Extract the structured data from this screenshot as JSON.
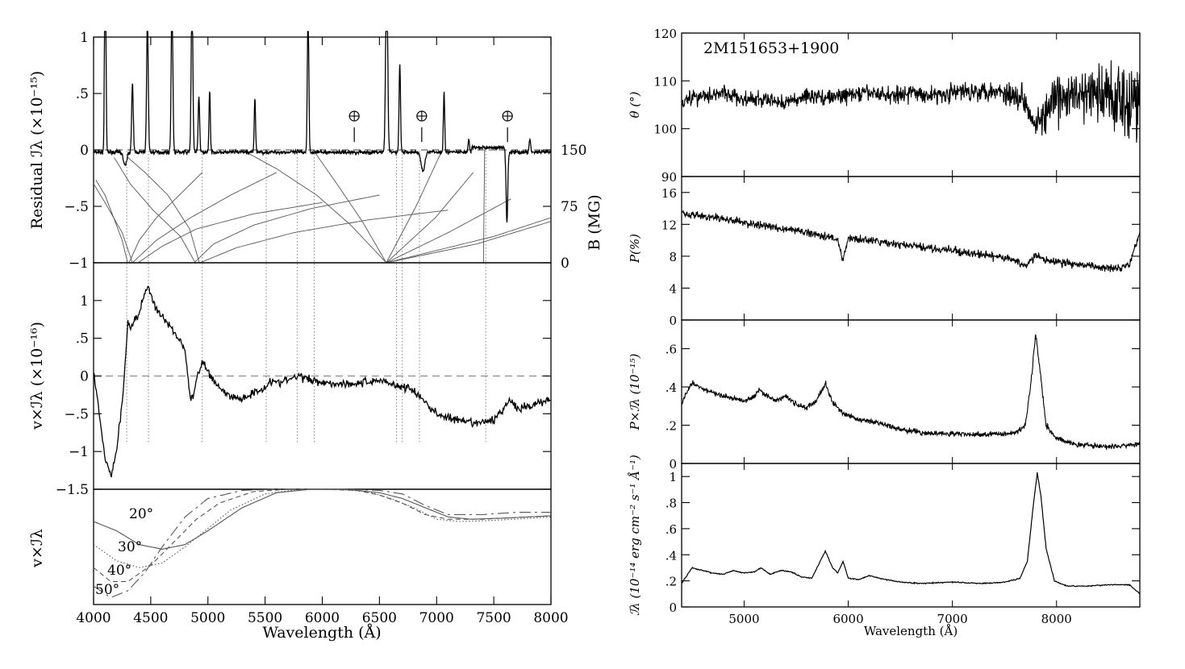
{
  "chart_data": [
    {
      "type": "line",
      "panel": "left-top",
      "ylabel": "Residual ℐλ (×10⁻¹⁵)",
      "ylabel_right": "B (MG)",
      "xlim": [
        4000,
        8000
      ],
      "ylim": [
        -1,
        1
      ],
      "yticks": [
        "1",
        ".5",
        "0",
        "−.5",
        "−1"
      ],
      "yticks_right": [
        "150",
        "75",
        "0"
      ],
      "yright_range": [
        0,
        150
      ],
      "telluric_markers": [
        6280,
        6870,
        7620
      ],
      "telluric_symbol": "⊕",
      "emission_lines": [
        {
          "x": 4102,
          "h": 2.5,
          "w": 8
        },
        {
          "x": 4340,
          "h": 0.6,
          "w": 10
        },
        {
          "x": 4471,
          "h": 1.2,
          "w": 10
        },
        {
          "x": 4686,
          "h": 1.4,
          "w": 10
        },
        {
          "x": 4861,
          "h": 1.5,
          "w": 10
        },
        {
          "x": 4921,
          "h": 0.5,
          "w": 9
        },
        {
          "x": 5015,
          "h": 0.55,
          "w": 8
        },
        {
          "x": 5411,
          "h": 0.48,
          "w": 8
        },
        {
          "x": 5876,
          "h": 1.3,
          "w": 9
        },
        {
          "x": 6563,
          "h": 1.8,
          "w": 12
        },
        {
          "x": 6678,
          "h": 0.78,
          "w": 9
        },
        {
          "x": 7065,
          "h": 0.55,
          "w": 8
        },
        {
          "x": 7281,
          "h": 0.12,
          "w": 8
        },
        {
          "x": 7816,
          "h": 0.12,
          "w": 9
        }
      ],
      "absorption_features": [
        {
          "x": 4275,
          "h": 0.12,
          "w": 20
        },
        {
          "x": 6880,
          "h": 0.17,
          "w": 22
        },
        {
          "x": 7615,
          "h": 0.62,
          "w": 10
        }
      ],
      "field_tracks": [
        {
          "x": [
            4298,
            4250,
            4175,
            4100,
            4020
          ],
          "b": [
            0,
            30,
            60,
            90,
            110
          ]
        },
        {
          "x": [
            4310,
            4400,
            4550,
            4750,
            4950
          ],
          "b": [
            0,
            30,
            60,
            90,
            120
          ]
        },
        {
          "x": [
            4340,
            4250,
            4100,
            4000
          ],
          "b": [
            0,
            40,
            80,
            105
          ]
        },
        {
          "x": [
            4340,
            4550,
            4850,
            5200,
            5600
          ],
          "b": [
            0,
            30,
            60,
            90,
            120
          ]
        },
        {
          "x": [
            4390,
            4600,
            4900,
            5400,
            6000
          ],
          "b": [
            0,
            22,
            45,
            65,
            80
          ]
        },
        {
          "x": [
            4890,
            4760,
            4520,
            4320,
            4180
          ],
          "b": [
            0,
            35,
            70,
            105,
            140
          ]
        },
        {
          "x": [
            4880,
            5050,
            5400,
            5900,
            6500
          ],
          "b": [
            0,
            25,
            50,
            72,
            90
          ]
        },
        {
          "x": [
            4925,
            4840,
            4650,
            4450,
            4300
          ],
          "b": [
            0,
            45,
            90,
            120,
            140
          ]
        },
        {
          "x": [
            4930,
            5250,
            5750,
            6400,
            7100
          ],
          "b": [
            0,
            20,
            40,
            57,
            70
          ]
        },
        {
          "x": [
            6560,
            6250,
            5950,
            5600,
            5300
          ],
          "b": [
            0,
            50,
            90,
            125,
            150
          ]
        },
        {
          "x": [
            6560,
            6350,
            6150,
            5920
          ],
          "b": [
            0,
            55,
            100,
            150
          ]
        },
        {
          "x": [
            6560,
            6820,
            7050
          ],
          "b": [
            0,
            75,
            150
          ]
        },
        {
          "x": [
            6560,
            6990,
            7320
          ],
          "b": [
            0,
            60,
            120
          ]
        },
        {
          "x": [
            6560,
            7100,
            7650
          ],
          "b": [
            0,
            40,
            85
          ]
        },
        {
          "x": [
            6560,
            7350,
            8000
          ],
          "b": [
            0,
            25,
            55
          ]
        },
        {
          "x": [
            6560,
            7500,
            8000
          ],
          "b": [
            0,
            35,
            60
          ]
        },
        {
          "x": [
            7410,
            7415,
            7420
          ],
          "b": [
            0,
            80,
            150
          ]
        }
      ]
    },
    {
      "type": "line",
      "panel": "left-middle",
      "ylabel": "v×ℐλ (×10⁻¹⁶)",
      "xlim": [
        4000,
        8000
      ],
      "ylim": [
        -1.5,
        1.5
      ],
      "yticks": [
        "1",
        ".5",
        "0",
        "−.5",
        "−1",
        "−1.5"
      ],
      "vertical_markers": [
        4290,
        4480,
        4950,
        5510,
        5780,
        5930,
        6650,
        6700,
        6850,
        7430
      ],
      "series": [
        {
          "x": [
            4000,
            4050,
            4100,
            4150,
            4200,
            4260,
            4300,
            4330,
            4400,
            4440,
            4480,
            4520,
            4560,
            4600,
            4700,
            4760,
            4800,
            4850,
            4880,
            4920,
            4960,
            5000,
            5050,
            5100,
            5200,
            5300,
            5400,
            5500,
            5550,
            5600,
            5700,
            5800,
            5900,
            6000,
            6100,
            6200,
            6300,
            6400,
            6500,
            6600,
            6700,
            6750,
            6800,
            6900,
            7000,
            7100,
            7200,
            7300,
            7400,
            7500,
            7600,
            7650,
            7700,
            7800,
            7900,
            8000
          ],
          "y": [
            0.05,
            -0.5,
            -1.1,
            -1.32,
            -1.0,
            -0.2,
            0.72,
            0.65,
            0.85,
            1.05,
            1.2,
            1.0,
            0.85,
            0.78,
            0.6,
            0.45,
            0.35,
            -0.35,
            -0.2,
            0.05,
            0.2,
            0.05,
            -0.05,
            -0.15,
            -0.28,
            -0.3,
            -0.22,
            -0.15,
            -0.05,
            -0.1,
            -0.05,
            0.0,
            -0.05,
            -0.08,
            -0.1,
            -0.1,
            -0.1,
            -0.08,
            -0.05,
            -0.1,
            -0.15,
            -0.15,
            -0.2,
            -0.35,
            -0.5,
            -0.55,
            -0.6,
            -0.62,
            -0.62,
            -0.58,
            -0.4,
            -0.3,
            -0.45,
            -0.4,
            -0.35,
            -0.3
          ]
        }
      ]
    },
    {
      "type": "line",
      "panel": "left-bottom",
      "ylabel": "v×ℐλ",
      "xlabel": "Wavelength (Å)",
      "xlim": [
        4000,
        8000
      ],
      "xticks": [
        "4000",
        "4500",
        "5000",
        "5500",
        "6000",
        "6500",
        "7000",
        "7500",
        "8000"
      ],
      "series": [
        {
          "name": "20°",
          "style": "solid",
          "x": [
            4000,
            4200,
            4400,
            4600,
            4800,
            5000,
            5300,
            5600,
            5900,
            6200,
            6500,
            6700,
            6900,
            7100,
            7300,
            7600,
            8000
          ],
          "y": [
            0.86,
            0.82,
            0.76,
            0.74,
            0.76,
            0.82,
            0.92,
            0.985,
            1.0,
            1.0,
            0.985,
            0.96,
            0.92,
            0.88,
            0.87,
            0.875,
            0.885
          ]
        },
        {
          "name": "30°",
          "style": "dotted",
          "x": [
            4000,
            4200,
            4400,
            4600,
            4800,
            5000,
            5200,
            5500,
            5800,
            6100,
            6400,
            6600,
            6800,
            7000,
            7200,
            7500,
            8000
          ],
          "y": [
            0.76,
            0.69,
            0.66,
            0.68,
            0.75,
            0.83,
            0.91,
            0.98,
            1.0,
            1.0,
            0.99,
            0.96,
            0.92,
            0.87,
            0.86,
            0.865,
            0.88
          ]
        },
        {
          "name": "40°",
          "style": "dashed",
          "x": [
            4000,
            4150,
            4300,
            4500,
            4700,
            4900,
            5100,
            5400,
            5700,
            6000,
            6300,
            6500,
            6700,
            6900,
            7100,
            7400,
            8000
          ],
          "y": [
            0.66,
            0.6,
            0.6,
            0.67,
            0.77,
            0.87,
            0.94,
            0.99,
            1.0,
            1.0,
            0.995,
            0.975,
            0.94,
            0.89,
            0.87,
            0.87,
            0.885
          ]
        },
        {
          "name": "50°",
          "style": "long-dash",
          "x": [
            4000,
            4150,
            4300,
            4450,
            4600,
            4800,
            5000,
            5300,
            5600,
            5900,
            6200,
            6500,
            6700,
            6900,
            7100,
            7400,
            7700,
            8000
          ],
          "y": [
            0.58,
            0.53,
            0.56,
            0.64,
            0.75,
            0.88,
            0.96,
            0.995,
            1.0,
            1.0,
            1.0,
            0.995,
            0.98,
            0.93,
            0.89,
            0.89,
            0.9,
            0.9
          ]
        }
      ]
    },
    {
      "type": "line",
      "panel": "right-1",
      "title": "2M151653+1900",
      "ylabel": "θ (°)",
      "xlim": [
        4400,
        8800
      ],
      "ylim": [
        90,
        120
      ],
      "yticks": [
        "120",
        "110",
        "100",
        "90"
      ],
      "series": [
        {
          "x": [
            4400,
            4600,
            4800,
            5000,
            5200,
            5400,
            5500,
            5600,
            5800,
            6000,
            6200,
            6400,
            6600,
            6800,
            7000,
            7200,
            7400,
            7500,
            7600,
            7700,
            7800,
            7900,
            8000,
            8200,
            8400,
            8600,
            8800
          ],
          "y": [
            106,
            107,
            107.5,
            106,
            106,
            105.5,
            106,
            107,
            106.5,
            107,
            107.5,
            107,
            107.5,
            107,
            107.5,
            108,
            108,
            107.5,
            107,
            106,
            101,
            103,
            106,
            107,
            107,
            107,
            106
          ],
          "noise": [
            1.4,
            1.3,
            1.2,
            1.2,
            1.2,
            1.2,
            1.2,
            1.2,
            1.2,
            1.2,
            1.2,
            1.2,
            1.3,
            1.3,
            1.4,
            1.5,
            1.6,
            1.8,
            2,
            2,
            2,
            3,
            3.5,
            4,
            5,
            6,
            7
          ]
        }
      ]
    },
    {
      "type": "line",
      "panel": "right-2",
      "ylabel": "P(%)",
      "xlim": [
        4400,
        8800
      ],
      "ylim": [
        0,
        18
      ],
      "yticks": [
        "16",
        "12",
        "8",
        "4",
        "0"
      ],
      "series": [
        {
          "x": [
            4400,
            4600,
            4800,
            5000,
            5200,
            5400,
            5600,
            5800,
            5900,
            5950,
            6000,
            6200,
            6400,
            6600,
            6800,
            7000,
            7200,
            7400,
            7600,
            7700,
            7800,
            7900,
            8000,
            8200,
            8400,
            8600,
            8700,
            8800
          ],
          "y": [
            13.5,
            13,
            12.7,
            12.2,
            11.8,
            11.4,
            11,
            10.5,
            10,
            7.5,
            10.2,
            10,
            9.6,
            9.3,
            9,
            8.7,
            8.3,
            8,
            7.5,
            6.8,
            8,
            7.5,
            7.3,
            7,
            6.6,
            6.6,
            7,
            11
          ]
        }
      ]
    },
    {
      "type": "line",
      "panel": "right-3",
      "ylabel": "P×ℐλ (10⁻¹⁵)",
      "xlim": [
        4400,
        8800
      ],
      "ylim": [
        0,
        0.75
      ],
      "yticks": [
        ".6",
        ".4",
        ".2",
        "0"
      ],
      "series": [
        {
          "x": [
            4400,
            4500,
            4600,
            4800,
            5000,
            5100,
            5150,
            5200,
            5300,
            5400,
            5500,
            5600,
            5700,
            5780,
            5850,
            5950,
            6100,
            6200,
            6300,
            6500,
            6700,
            7000,
            7300,
            7600,
            7700,
            7750,
            7800,
            7850,
            7900,
            8000,
            8200,
            8400,
            8600,
            8800
          ],
          "y": [
            0.32,
            0.42,
            0.39,
            0.35,
            0.33,
            0.35,
            0.39,
            0.36,
            0.33,
            0.35,
            0.31,
            0.29,
            0.33,
            0.42,
            0.32,
            0.26,
            0.23,
            0.22,
            0.21,
            0.18,
            0.16,
            0.155,
            0.15,
            0.16,
            0.2,
            0.4,
            0.68,
            0.45,
            0.2,
            0.13,
            0.1,
            0.09,
            0.09,
            0.1
          ]
        }
      ]
    },
    {
      "type": "line",
      "panel": "right-4",
      "ylabel": "ℐλ (10⁻¹⁴ erg cm⁻² s⁻¹ Å⁻¹)",
      "xlabel": "Wavelength (Å)",
      "xlim": [
        4400,
        8800
      ],
      "ylim": [
        0,
        1.1
      ],
      "yticks": [
        "1",
        ".8",
        ".6",
        ".4",
        ".2",
        "0"
      ],
      "xticks": [
        "5000",
        "6000",
        "7000",
        "8000"
      ],
      "series": [
        {
          "x": [
            4400,
            4500,
            4600,
            4700,
            4800,
            4900,
            5000,
            5100,
            5160,
            5250,
            5350,
            5450,
            5550,
            5650,
            5700,
            5780,
            5850,
            5900,
            5950,
            6000,
            6100,
            6200,
            6300,
            6500,
            6700,
            7000,
            7300,
            7500,
            7650,
            7720,
            7780,
            7815,
            7850,
            7900,
            7980,
            8100,
            8300,
            8500,
            8700,
            8800
          ],
          "y": [
            0.18,
            0.3,
            0.28,
            0.26,
            0.25,
            0.28,
            0.26,
            0.27,
            0.3,
            0.25,
            0.28,
            0.27,
            0.23,
            0.22,
            0.3,
            0.43,
            0.3,
            0.26,
            0.35,
            0.22,
            0.21,
            0.24,
            0.22,
            0.19,
            0.18,
            0.19,
            0.18,
            0.19,
            0.22,
            0.35,
            0.8,
            1.03,
            0.85,
            0.45,
            0.2,
            0.16,
            0.16,
            0.17,
            0.17,
            0.1
          ]
        }
      ]
    }
  ]
}
